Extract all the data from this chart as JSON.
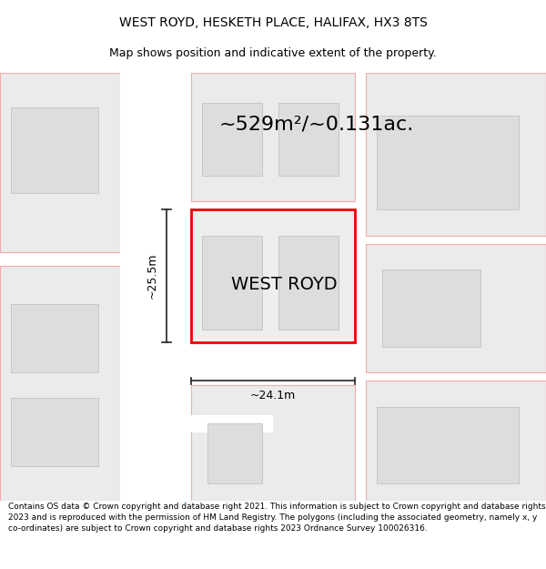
{
  "title_line1": "WEST ROYD, HESKETH PLACE, HALIFAX, HX3 8TS",
  "title_line2": "Map shows position and indicative extent of the property.",
  "area_label": "~529m²/~0.131ac.",
  "property_label": "WEST ROYD",
  "width_label": "~24.1m",
  "height_label": "~25.5m",
  "footer": "Contains OS data © Crown copyright and database right 2021. This information is subject to Crown copyright and database rights 2023 and is reproduced with the permission of HM Land Registry. The polygons (including the associated geometry, namely x, y co-ordinates) are subject to Crown copyright and database rights 2023 Ordnance Survey 100026316.",
  "bg_color": "#ffffff",
  "map_bg": "#efefef",
  "building_fill": "#dddddd",
  "red_outline": "#ee0000",
  "pink_outline": "#f5aaaa",
  "arrow_color": "#222222",
  "title_fs": 10,
  "subtitle_fs": 9,
  "area_fs": 16,
  "label_fs": 14,
  "meas_fs": 9,
  "footer_fs": 6.5
}
